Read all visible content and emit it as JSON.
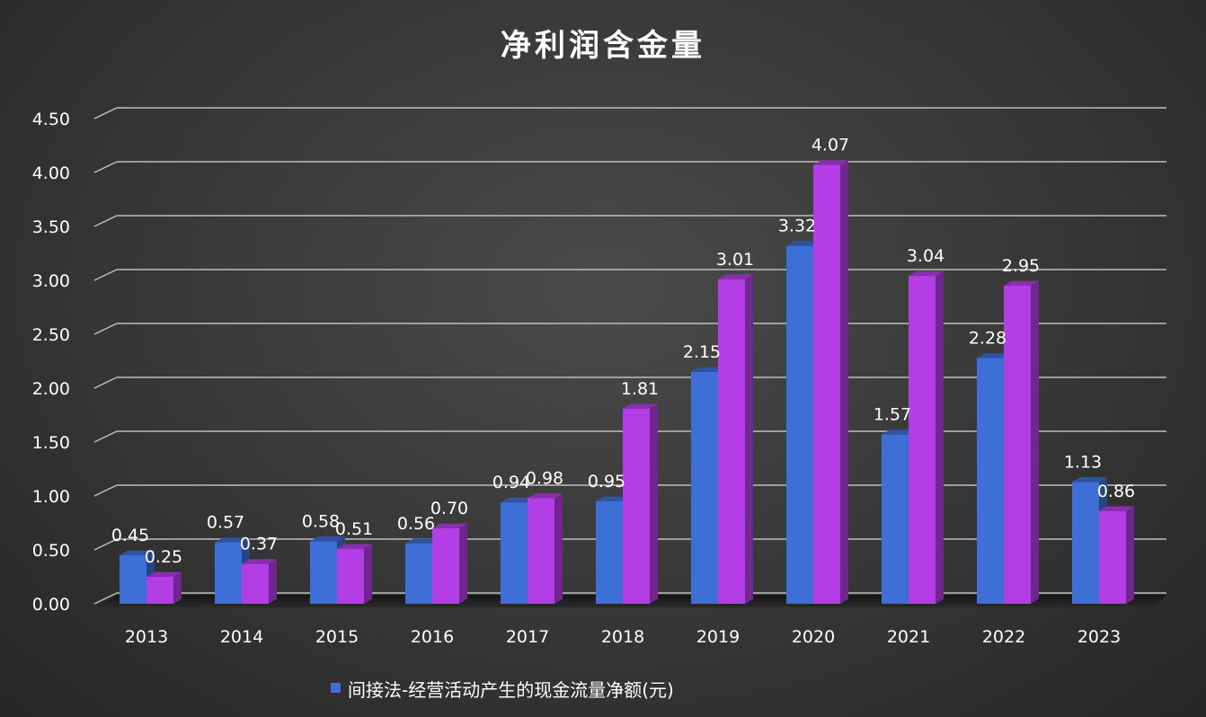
{
  "chart_data": {
    "type": "bar",
    "title": "净利润含金量",
    "categories": [
      "2013",
      "2014",
      "2015",
      "2016",
      "2017",
      "2018",
      "2019",
      "2020",
      "2021",
      "2022",
      "2023"
    ],
    "series": [
      {
        "name": "间接法-经营活动产生的现金流量净额(元)",
        "color": "#3d6fd6",
        "values": [
          0.45,
          0.57,
          0.58,
          0.56,
          0.94,
          0.95,
          2.15,
          3.32,
          1.57,
          2.28,
          1.13
        ],
        "labels": [
          "0.45",
          "0.57",
          "0.58",
          "0.56",
          "0.94",
          "0.95",
          "2.15",
          "3.32",
          "1.57",
          "2.28",
          "1.13"
        ]
      },
      {
        "color": "#b43ee6",
        "values": [
          0.25,
          0.37,
          0.51,
          0.7,
          0.98,
          1.81,
          3.01,
          4.07,
          3.04,
          2.95,
          0.86
        ],
        "labels": [
          "0.25",
          "0.37",
          "0.51",
          "0.70",
          "0.98",
          "1.81",
          "3.01",
          "4.07",
          "3.04",
          "2.95",
          "0.86"
        ]
      }
    ],
    "yticks": [
      "0.00",
      "0.50",
      "1.00",
      "1.50",
      "2.00",
      "2.50",
      "3.00",
      "3.50",
      "4.00",
      "4.50"
    ],
    "ylim": [
      0,
      4.5
    ],
    "grid": true,
    "legend_position": "bottom"
  }
}
